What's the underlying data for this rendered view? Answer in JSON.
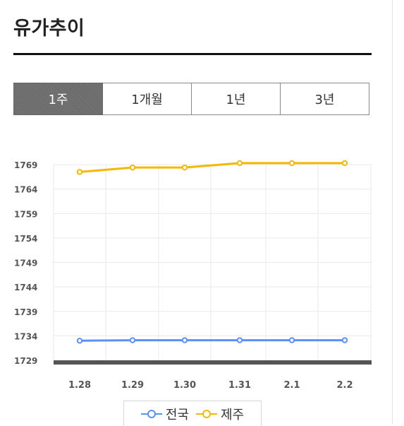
{
  "title": "유가추이",
  "tabs": [
    {
      "label": "1주",
      "active": true
    },
    {
      "label": "1개월",
      "active": false
    },
    {
      "label": "1년",
      "active": false
    },
    {
      "label": "3년",
      "active": false
    }
  ],
  "chart_data": {
    "type": "line",
    "categories": [
      "1.28",
      "1.29",
      "1.30",
      "1.31",
      "2.1",
      "2.2"
    ],
    "yticks": [
      1729,
      1734,
      1739,
      1744,
      1749,
      1754,
      1759,
      1764,
      1769
    ],
    "ylim": [
      1729,
      1769
    ],
    "grid": true,
    "legend_position": "bottom",
    "series": [
      {
        "name": "전국",
        "color": "#5b8ff9",
        "values": [
          1733.0,
          1733.1,
          1733.1,
          1733.1,
          1733.1,
          1733.1
        ]
      },
      {
        "name": "제주",
        "color": "#f5b800",
        "values": [
          1767.5,
          1768.4,
          1768.4,
          1769.3,
          1769.3,
          1769.3
        ]
      }
    ]
  },
  "colors": {
    "grid": "#e9e9e9",
    "baseline": "#555555",
    "tab_active": "#6b6b6b",
    "title_rule": "#111111"
  }
}
